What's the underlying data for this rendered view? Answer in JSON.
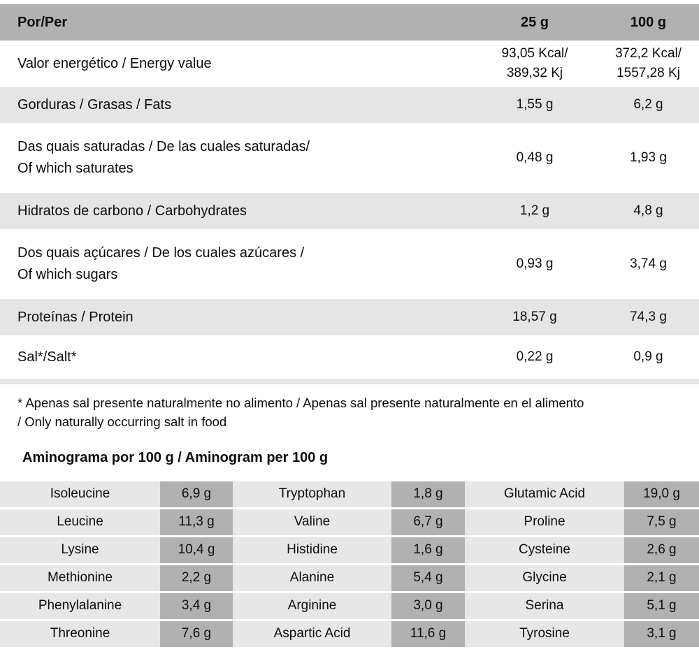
{
  "main_table": {
    "header": {
      "label": "Por/Per",
      "col_25g": "25 g",
      "col_100g": "100 g"
    },
    "rows": [
      {
        "label": "Valor energético / Energy value",
        "per_25g": "93,05 Kcal/\n389,32 Kj",
        "per_100g": "372,2 Kcal/\n1557,28 Kj"
      },
      {
        "label": "Gorduras / Grasas / Fats",
        "per_25g": "1,55 g",
        "per_100g": "6,2 g"
      },
      {
        "label": "Das quais saturadas / De las cuales saturadas/\nOf which saturates",
        "per_25g": "0,48 g",
        "per_100g": "1,93 g"
      },
      {
        "label": "Hidratos de carbono / Carbohydrates",
        "per_25g": "1,2 g",
        "per_100g": "4,8 g"
      },
      {
        "label": "Dos quais açúcares / De los cuales azúcares /\nOf which sugars",
        "per_25g": "0,93 g",
        "per_100g": "3,74 g"
      },
      {
        "label": "Proteínas / Protein",
        "per_25g": "18,57 g",
        "per_100g": "74,3 g"
      },
      {
        "label": "Sal*/Salt*",
        "per_25g": "0,22 g",
        "per_100g": "0,9 g"
      }
    ]
  },
  "footnote": "* Apenas sal presente naturalmente no alimento /  Apenas sal presente naturalmente en el alimento\n/ Only naturally occurring salt in food",
  "aminogram": {
    "title": "Aminograma por 100 g / Aminogram per 100 g",
    "rows": [
      [
        "Isoleucine",
        "6,9 g",
        "Tryptophan",
        "1,8 g",
        "Glutamic Acid",
        "19,0 g"
      ],
      [
        "Leucine",
        "11,3 g",
        "Valine",
        "6,7 g",
        "Proline",
        "7,5 g"
      ],
      [
        "Lysine",
        "10,4 g",
        "Histidine",
        "1,6 g",
        "Cysteine",
        "2,6 g"
      ],
      [
        "Methionine",
        "2,2 g",
        "Alanine",
        "5,4 g",
        "Glycine",
        "2,1 g"
      ],
      [
        "Phenylalanine",
        "3,4 g",
        "Arginine",
        "3,0 g",
        "Serina",
        "5,1 g"
      ],
      [
        "Threonine",
        "7,6 g",
        "Aspartic Acid",
        "11,6 g",
        "Tyrosine",
        "3,1 g"
      ]
    ]
  },
  "colors": {
    "header_gray": "#B1B1B1",
    "stripe_gray": "#E5E5E5",
    "amino_name_gray": "#E7E7E7",
    "amino_value_gray": "#B1B1B1",
    "text": "#0d0d0d"
  }
}
